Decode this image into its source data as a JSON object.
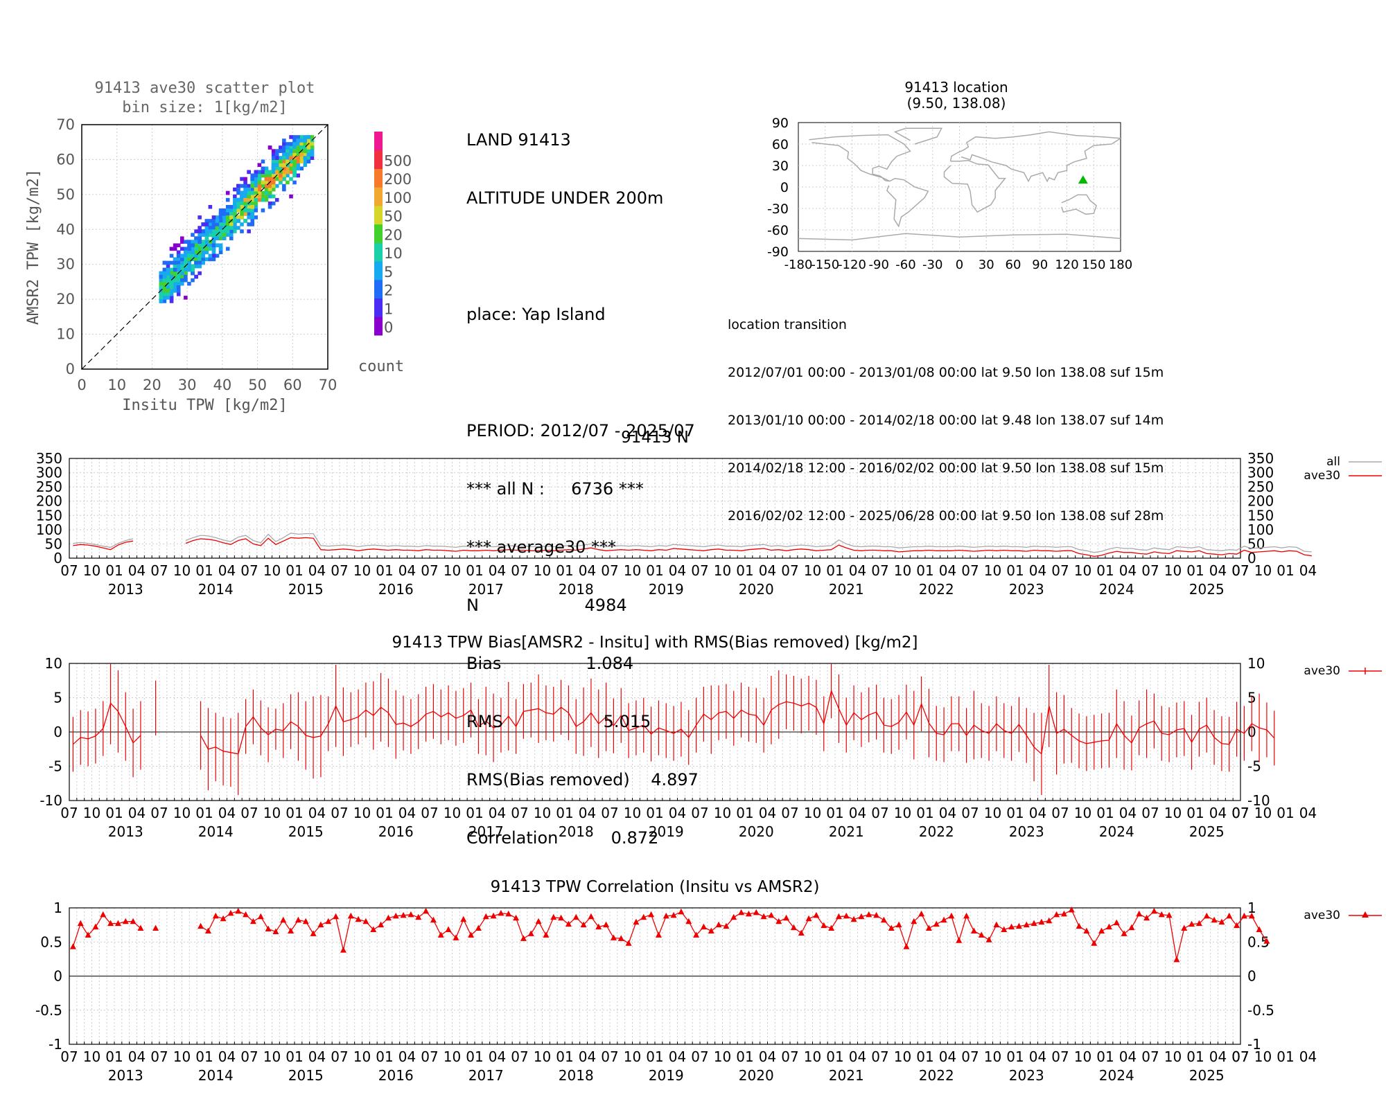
{
  "station": "91413",
  "scatter": {
    "title": [
      "91413 ave30 scatter plot",
      "bin size: 1[kg/m2]"
    ],
    "xlabel": "Insitu TPW [kg/m2]",
    "ylabel": "AMSR2 TPW [kg/m2]",
    "xlim": [
      0,
      70
    ],
    "ylim": [
      0,
      70
    ],
    "ticks": [
      "0",
      "10",
      "20",
      "30",
      "40",
      "50",
      "60",
      "70"
    ],
    "colorbar_label": "count",
    "colorbar_levels": [
      "0",
      "1",
      "2",
      "5",
      "10",
      "20",
      "50",
      "100",
      "200",
      "500"
    ],
    "colorbar_colors": [
      "#8800cc",
      "#4a2cf5",
      "#1f6df7",
      "#18aaf0",
      "#19d0a8",
      "#44d02c",
      "#d6d62a",
      "#f0a830",
      "#f77a2c",
      "#f03040",
      "#f01890"
    ]
  },
  "info": {
    "lines": [
      "LAND 91413",
      "ALTITUDE UNDER 200m",
      "",
      "place: Yap Island",
      "",
      "PERIOD: 2012/07 - 2025/07",
      "*** all N :     6736 ***",
      "*** average30 ***",
      "N                    4984",
      "Bias                1.084",
      "RMS                   5.015",
      "RMS(Bias removed)    4.897",
      "Correlation          0.872"
    ]
  },
  "map": {
    "title": [
      "91413 location",
      "(9.50, 138.08)"
    ],
    "lat_ticks": [
      "90",
      "60",
      "30",
      "0",
      "-30",
      "-60",
      "-90"
    ],
    "lon_ticks": [
      "-180",
      "-150",
      "-120",
      "-90",
      "-60",
      "-30",
      "0",
      "30",
      "60",
      "90",
      "120",
      "150",
      "180"
    ],
    "station_lat": 9.5,
    "station_lon": 138.08,
    "marker_color": "#00bb00"
  },
  "transition": {
    "title": "location transition",
    "rows": [
      "2012/07/01 00:00 - 2013/01/08 00:00 lat 9.50 lon 138.08 suf 15m",
      "2013/01/10 00:00 - 2014/02/18 00:00 lat 9.48 lon 138.07 suf 14m",
      "2014/02/18 12:00 - 2016/02/02 00:00 lat 9.50 lon 138.08 suf 15m",
      "2016/02/02 12:00 - 2025/06/28 00:00 lat 9.50 lon 138.08 suf 28m"
    ]
  },
  "time_axis": {
    "month_labels": [
      "07",
      "10",
      "01",
      "04",
      "07",
      "10",
      "01",
      "04",
      "07",
      "10",
      "01",
      "04",
      "07",
      "10",
      "01",
      "04",
      "07",
      "10",
      "01",
      "04",
      "07",
      "10",
      "01",
      "04",
      "07",
      "10",
      "01",
      "04",
      "07",
      "10",
      "01",
      "04",
      "07",
      "10",
      "01",
      "04",
      "07",
      "10",
      "01",
      "04",
      "07",
      "10",
      "01",
      "04",
      "07",
      "10",
      "01",
      "04",
      "07",
      "10",
      "01",
      "04",
      "07",
      "10",
      "01",
      "04"
    ],
    "year_labels": [
      "2013",
      "2014",
      "2015",
      "2016",
      "2017",
      "2018",
      "2019",
      "2020",
      "2021",
      "2022",
      "2023",
      "2024",
      "2025"
    ],
    "last_label": "07"
  },
  "chart_data": [
    {
      "type": "line",
      "title": "91413 N",
      "ylim": [
        0,
        350
      ],
      "yticks": [
        "0",
        "50",
        "100",
        "150",
        "200",
        "250",
        "300",
        "350"
      ],
      "x_start": "2012-07",
      "x_end": "2025-07",
      "series": [
        {
          "name": "all",
          "color": "#aaaaaa",
          "values": [
            52,
            55,
            52,
            48,
            42,
            38,
            52,
            62,
            68,
            null,
            null,
            0,
            null,
            null,
            null,
            62,
            72,
            80,
            78,
            72,
            64,
            58,
            74,
            80,
            62,
            54,
            84,
            58,
            72,
            88,
            84,
            86,
            86,
            44,
            42,
            44,
            46,
            44,
            40,
            44,
            46,
            44,
            42,
            44,
            42,
            42,
            40,
            44,
            42,
            42,
            40,
            38,
            42,
            40,
            40,
            42,
            40,
            42,
            44,
            42,
            42,
            40,
            40,
            42,
            40,
            42,
            44,
            42,
            46,
            50,
            44,
            40,
            42,
            44,
            42,
            44,
            42,
            40,
            44,
            42,
            48,
            46,
            44,
            42,
            40,
            44,
            46,
            42,
            42,
            40,
            44,
            46,
            48,
            42,
            44,
            40,
            44,
            46,
            44,
            40,
            42,
            44,
            64,
            50,
            42,
            40,
            42,
            42,
            40,
            40,
            36,
            38,
            40,
            40,
            42,
            40,
            40,
            40,
            42,
            40,
            38,
            40,
            42,
            40,
            42,
            40,
            40,
            38,
            42,
            40,
            40,
            38,
            40,
            40,
            30,
            26,
            20,
            24,
            32,
            38,
            34,
            34,
            30,
            28,
            36,
            32,
            30,
            40,
            38,
            36,
            40,
            30,
            28,
            26,
            30,
            28,
            42,
            34,
            36,
            38,
            40,
            36,
            40,
            38,
            24,
            22
          ]
        },
        {
          "name": "ave30",
          "color": "#ee0000",
          "values": [
            44,
            48,
            46,
            42,
            36,
            30,
            46,
            56,
            60,
            null,
            null,
            0,
            null,
            null,
            null,
            52,
            62,
            68,
            66,
            62,
            54,
            48,
            62,
            68,
            50,
            44,
            70,
            48,
            60,
            72,
            70,
            72,
            70,
            30,
            28,
            30,
            32,
            30,
            26,
            30,
            32,
            30,
            28,
            30,
            28,
            28,
            26,
            30,
            28,
            28,
            26,
            24,
            28,
            26,
            26,
            28,
            26,
            28,
            30,
            28,
            28,
            26,
            26,
            28,
            26,
            28,
            30,
            28,
            32,
            36,
            30,
            26,
            28,
            30,
            28,
            30,
            28,
            26,
            30,
            28,
            34,
            32,
            30,
            28,
            26,
            30,
            32,
            28,
            28,
            26,
            30,
            32,
            34,
            28,
            30,
            26,
            30,
            32,
            30,
            26,
            28,
            30,
            46,
            36,
            28,
            26,
            28,
            28,
            26,
            26,
            22,
            24,
            26,
            26,
            28,
            26,
            26,
            26,
            28,
            26,
            24,
            26,
            28,
            26,
            28,
            26,
            26,
            24,
            28,
            26,
            26,
            24,
            26,
            26,
            16,
            12,
            6,
            10,
            18,
            24,
            20,
            20,
            16,
            14,
            22,
            18,
            16,
            26,
            24,
            22,
            26,
            16,
            14,
            12,
            16,
            14,
            28,
            20,
            22,
            24,
            26,
            22,
            26,
            24,
            12,
            8
          ]
        }
      ]
    },
    {
      "type": "line",
      "title": "91413 TPW Bias[AMSR2 - Insitu] with RMS(Bias removed) [kg/m2]",
      "ylim": [
        -10,
        10
      ],
      "yticks": [
        "10",
        "5",
        "0",
        "-5",
        "-10"
      ],
      "series": [
        {
          "name": "ave30",
          "color": "#ee0000",
          "bias": [
            -1.8,
            -0.8,
            -1.0,
            -0.6,
            0.5,
            4.2,
            3.0,
            0.8,
            -1.6,
            -0.5,
            null,
            3.5,
            null,
            null,
            null,
            null,
            null,
            -0.5,
            -2.5,
            -2.2,
            -2.8,
            -3.0,
            -3.2,
            0.8,
            2.2,
            0.6,
            -0.4,
            0.4,
            0.2,
            1.5,
            0.8,
            -0.5,
            -0.8,
            -0.6,
            1.2,
            3.8,
            1.5,
            1.8,
            2.2,
            3.2,
            2.4,
            3.6,
            2.8,
            1.1,
            1.3,
            0.8,
            1.5,
            2.6,
            3.0,
            2.2,
            2.8,
            2.0,
            2.4,
            3.2,
            0.8,
            1.6,
            0.6,
            1.0,
            2.3,
            0.8,
            3.0,
            3.2,
            3.4,
            2.8,
            2.6,
            3.6,
            2.8,
            0.8,
            1.5,
            2.8,
            1.2,
            2.2,
            0.9,
            2.4,
            0.2,
            0.6,
            1.0,
            -0.3,
            0.6,
            0.2,
            -0.2,
            0.4,
            -0.8,
            1.0,
            2.6,
            1.8,
            2.8,
            3.0,
            2.0,
            3.2,
            2.6,
            2.4,
            1.0,
            3.2,
            4.0,
            4.4,
            4.2,
            3.8,
            4.2,
            3.6,
            1.2,
            6.0,
            3.4,
            1.0,
            2.8,
            1.8,
            2.5,
            2.9,
            1.0,
            0.8,
            1.4,
            2.9,
            1.0,
            4.1,
            1.3,
            -0.2,
            -0.4,
            1.2,
            1.2,
            -0.5,
            1.0,
            0.2,
            -0.2,
            1.2,
            0.2,
            -0.2,
            1.1,
            -0.5,
            -2.2,
            -3.2,
            3.8,
            -0.2,
            0.4,
            -0.5,
            -1.3,
            -1.7,
            -1.5,
            -1.3,
            -1.2,
            1.2,
            -0.5,
            -1.6,
            0.6,
            1.2,
            1.6,
            -0.2,
            -0.4,
            0.3,
            0.5,
            -1.5,
            0.4,
            1.0,
            -0.8,
            -1.7,
            -1.8,
            0.4,
            -0.2,
            1.2,
            0.6,
            0.3,
            -0.9
          ],
          "rms": [
            4,
            4,
            4,
            4,
            4,
            6,
            6,
            5,
            5,
            5,
            null,
            4,
            null,
            null,
            null,
            null,
            null,
            5,
            6,
            5,
            5,
            5,
            6,
            4,
            4,
            4,
            4,
            3,
            4,
            4,
            5,
            5,
            6,
            6,
            4,
            6,
            5,
            4,
            4,
            4,
            5,
            5,
            5,
            5,
            4,
            4,
            4,
            4,
            4,
            4,
            4,
            4,
            4,
            4,
            4,
            5,
            5,
            4,
            5,
            4,
            4,
            4,
            5,
            4,
            4,
            4,
            4,
            4,
            5,
            5,
            5,
            5,
            4,
            4,
            4,
            4,
            4,
            4,
            4,
            4,
            4,
            4,
            4,
            4,
            4,
            5,
            4,
            4,
            4,
            4,
            4,
            4,
            4,
            5,
            5,
            4,
            4,
            4,
            4,
            4,
            4,
            4,
            5,
            4,
            4,
            4,
            4,
            4,
            4,
            4,
            4,
            4,
            5,
            4,
            5,
            4,
            4,
            4,
            4,
            4,
            5,
            4,
            4,
            4,
            4,
            4,
            4,
            4,
            5,
            6,
            6,
            6,
            5,
            4,
            4,
            4,
            4,
            4,
            4,
            5,
            5,
            4,
            4,
            5,
            4,
            4,
            4,
            4,
            4,
            4,
            4,
            4,
            4,
            4,
            4,
            4,
            4,
            4,
            5,
            4,
            4
          ]
        }
      ]
    },
    {
      "type": "line",
      "title": "91413 TPW Correlation (Insitu vs AMSR2)",
      "ylim": [
        -1,
        1
      ],
      "yticks": [
        "1",
        "0.5",
        "0",
        "-0.5",
        "-1"
      ],
      "series": [
        {
          "name": "ave30",
          "color": "#ee0000",
          "values": [
            0.43,
            0.77,
            0.6,
            0.72,
            0.9,
            0.77,
            0.77,
            0.8,
            0.8,
            0.7,
            null,
            0.7,
            null,
            null,
            null,
            null,
            null,
            0.73,
            0.66,
            0.88,
            0.84,
            0.92,
            0.95,
            0.9,
            0.8,
            0.87,
            0.69,
            0.65,
            0.82,
            0.66,
            0.82,
            0.8,
            0.62,
            0.75,
            0.8,
            0.87,
            0.38,
            0.88,
            0.83,
            0.8,
            0.68,
            0.75,
            0.85,
            0.88,
            0.89,
            0.9,
            0.86,
            0.95,
            0.82,
            0.6,
            0.68,
            0.56,
            0.83,
            0.6,
            0.7,
            0.87,
            0.88,
            0.92,
            0.91,
            0.85,
            0.55,
            0.62,
            0.8,
            0.6,
            0.86,
            0.85,
            0.76,
            0.86,
            0.75,
            0.87,
            0.72,
            0.75,
            0.56,
            0.55,
            0.48,
            0.79,
            0.86,
            0.9,
            0.6,
            0.88,
            0.89,
            0.94,
            0.8,
            0.6,
            0.72,
            0.66,
            0.75,
            0.73,
            0.86,
            0.93,
            0.91,
            0.93,
            0.87,
            0.89,
            0.8,
            0.85,
            0.71,
            0.63,
            0.84,
            0.89,
            0.74,
            0.7,
            0.87,
            0.88,
            0.83,
            0.87,
            0.9,
            0.89,
            0.82,
            0.7,
            0.75,
            0.43,
            0.8,
            0.91,
            0.7,
            0.76,
            0.82,
            0.88,
            0.52,
            0.88,
            0.66,
            0.6,
            0.53,
            0.75,
            0.68,
            0.72,
            0.73,
            0.75,
            0.77,
            0.79,
            0.81,
            0.9,
            0.91,
            0.97,
            0.73,
            0.66,
            0.48,
            0.66,
            0.72,
            0.78,
            0.62,
            0.71,
            0.91,
            0.85,
            0.95,
            0.9,
            0.89,
            0.24,
            0.7,
            0.76,
            0.77,
            0.88,
            0.82,
            0.79,
            0.88,
            0.74,
            0.88,
            0.88,
            0.68,
            0.51
          ]
        }
      ]
    }
  ]
}
